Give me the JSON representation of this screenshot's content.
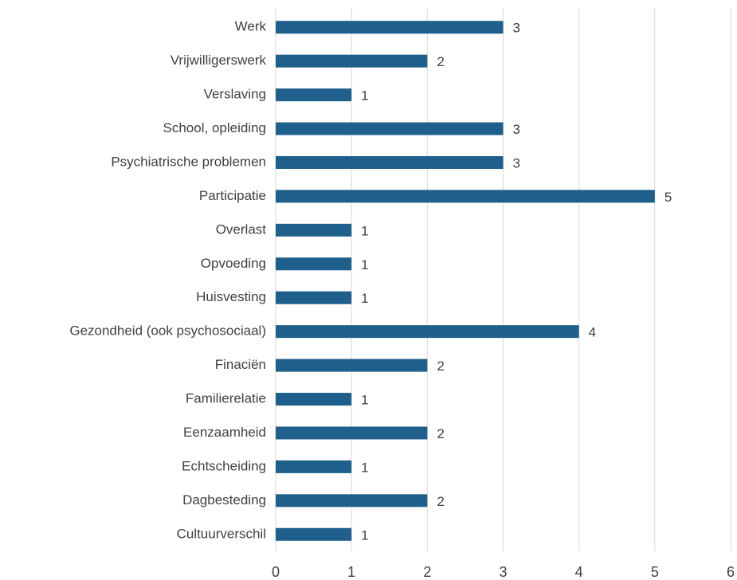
{
  "chart_data": {
    "type": "barh",
    "categories": [
      "Werk",
      "Vrijwilligerswerk",
      "Verslaving",
      "School, opleiding",
      "Psychiatrische problemen",
      "Participatie",
      "Overlast",
      "Opvoeding",
      "Huisvesting",
      "Gezondheid (ook psychosociaal)",
      "Finaciën",
      "Familierelatie",
      "Eenzaamheid",
      "Echtscheiding",
      "Dagbesteding",
      "Cultuurverschil"
    ],
    "values": [
      3,
      2,
      1,
      3,
      3,
      5,
      1,
      1,
      1,
      4,
      2,
      1,
      2,
      1,
      2,
      1
    ],
    "color": "#1f5f8b",
    "xlim": [
      0,
      6
    ],
    "xticks": [
      0,
      1,
      2,
      3,
      4,
      5,
      6
    ],
    "grid": true
  }
}
